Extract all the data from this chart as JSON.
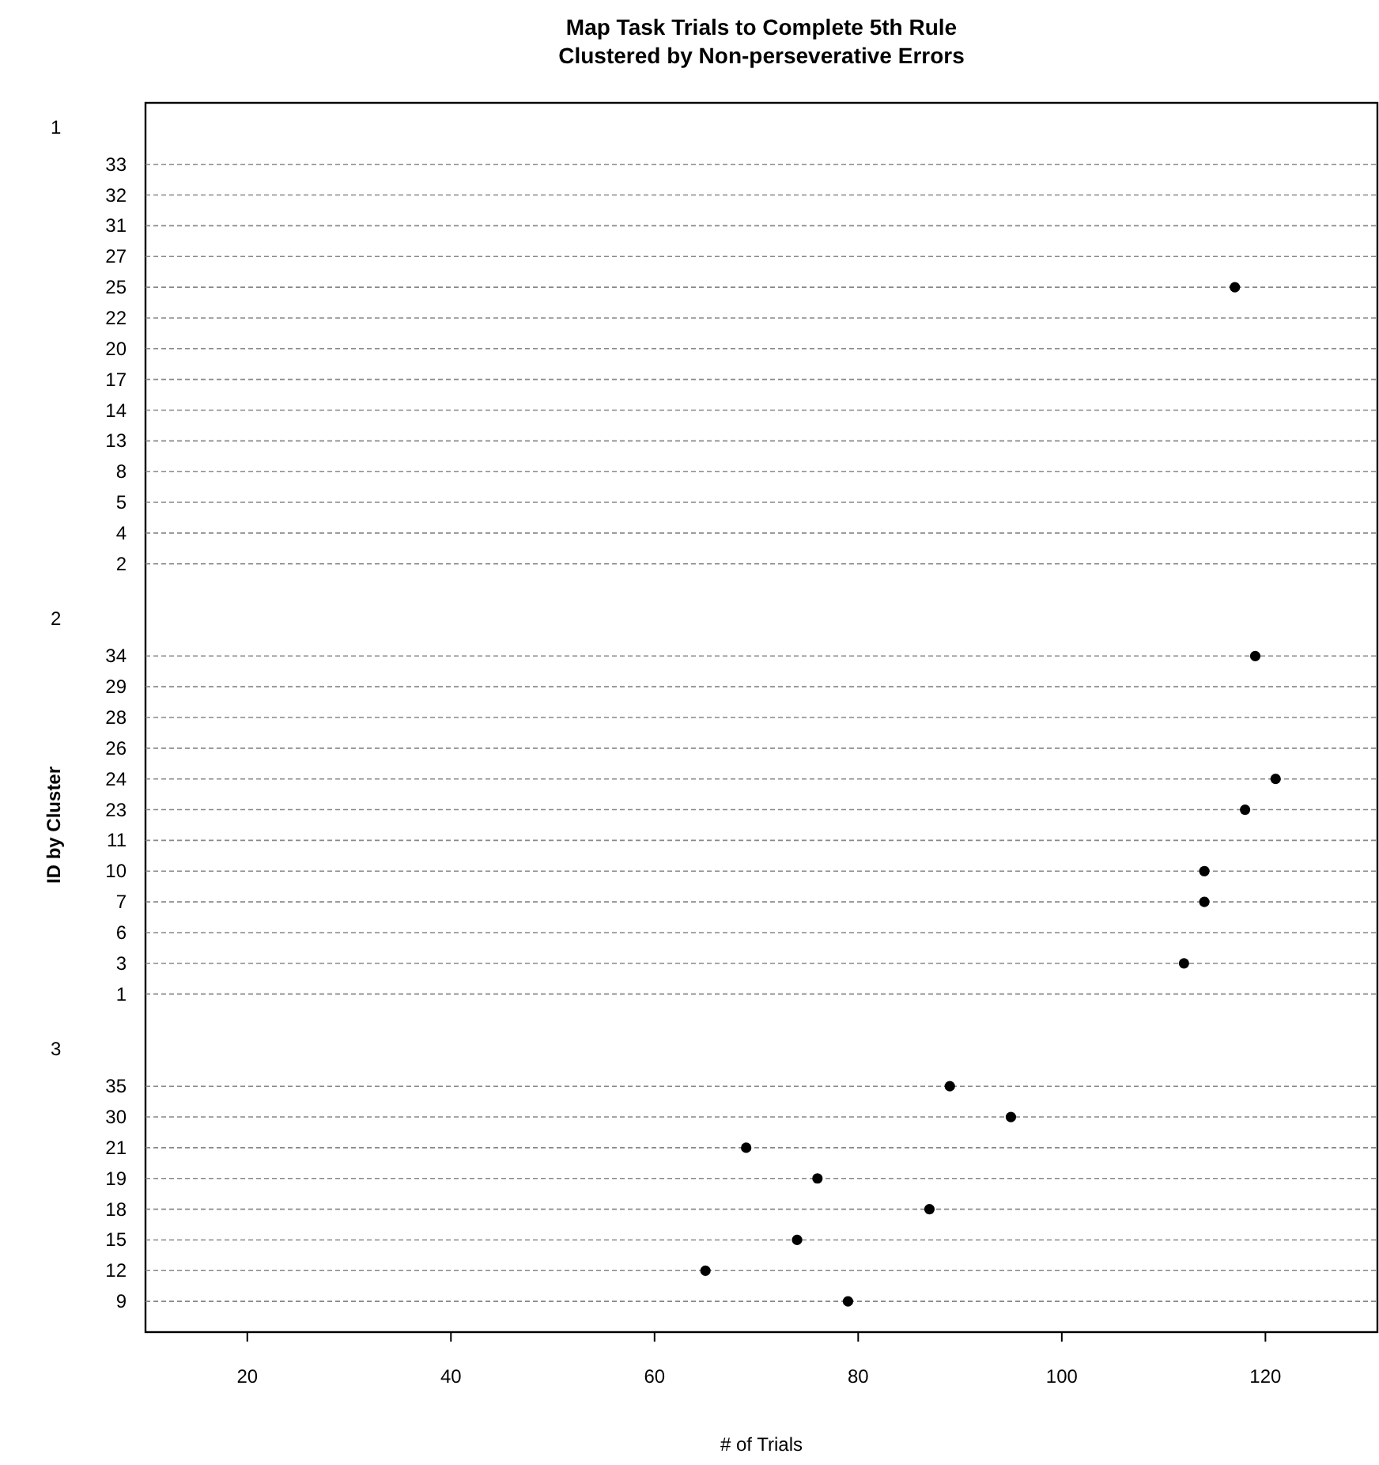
{
  "chart_data": [
    {
      "type": "scatter",
      "title": "Map Task Trials to Complete 5th Rule\nClustered by Non-perseverative Errors",
      "subtitle": "1",
      "orientation": "horizontal",
      "categories": [
        "33",
        "32",
        "31",
        "27",
        "25",
        "22",
        "20",
        "17",
        "14",
        "13",
        "8",
        "5",
        "4",
        "2"
      ],
      "values": [
        null,
        null,
        null,
        null,
        117,
        null,
        null,
        null,
        null,
        null,
        null,
        null,
        null,
        null
      ],
      "color": "#000000",
      "marker": "circle",
      "grid": "y",
      "xlim": [
        10,
        131
      ],
      "tick_labels": "y"
    },
    {
      "type": "scatter",
      "subtitle": "2",
      "ylabel": "ID by Cluster",
      "orientation": "horizontal",
      "categories": [
        "34",
        "29",
        "28",
        "26",
        "24",
        "23",
        "11",
        "10",
        "7",
        "6",
        "3",
        "1"
      ],
      "values": [
        119,
        null,
        null,
        null,
        121,
        118,
        null,
        114,
        114,
        null,
        112,
        null
      ],
      "color": "#000000",
      "marker": "circle",
      "grid": "y",
      "xlim": [
        10,
        131
      ],
      "tick_labels": "y"
    },
    {
      "type": "scatter",
      "subtitle": "3",
      "xlabel": "# of Trials",
      "orientation": "horizontal",
      "categories": [
        "35",
        "30",
        "21",
        "19",
        "18",
        "15",
        "12",
        "9"
      ],
      "values": [
        89,
        95,
        69,
        76,
        87,
        74,
        65,
        79
      ],
      "color": "#000000",
      "marker": "circle",
      "grid": "y",
      "xlim": [
        10,
        131
      ],
      "xticks": [
        20,
        40,
        60,
        80,
        100,
        120
      ]
    }
  ]
}
